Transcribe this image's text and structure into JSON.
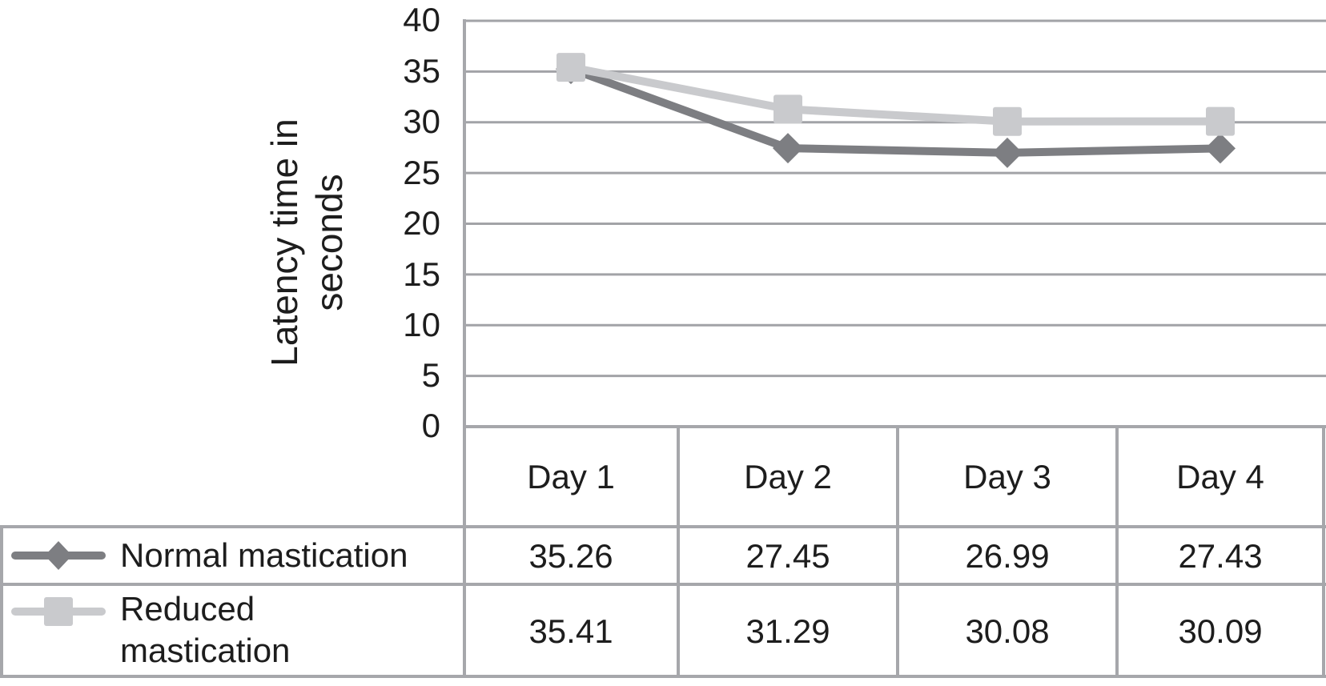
{
  "chart_data": {
    "type": "line",
    "title": "",
    "xlabel": "",
    "ylabel": "Latency time in\nseconds",
    "categories": [
      "Day 1",
      "Day 2",
      "Day 3",
      "Day 4"
    ],
    "series": [
      {
        "name": "Normal mastication",
        "values": [
          35.26,
          27.45,
          26.99,
          27.43
        ],
        "color": "#7d7e82",
        "marker": "diamond"
      },
      {
        "name": "Reduced mastication",
        "values": [
          35.41,
          31.29,
          30.08,
          30.09
        ],
        "color": "#c9cacd",
        "marker": "square"
      }
    ],
    "ylim": [
      0,
      40
    ],
    "ytick_step": 5,
    "yticks": [
      "40",
      "35",
      "30",
      "25",
      "20",
      "15",
      "10",
      "5",
      "0"
    ],
    "grid": "horizontal-only",
    "legend_position": "table-left",
    "gridline_color": "#a2a3a7",
    "border_color": "#a6a7ab",
    "text_color": "#1d1d1d",
    "background_color": "#ffffff"
  }
}
